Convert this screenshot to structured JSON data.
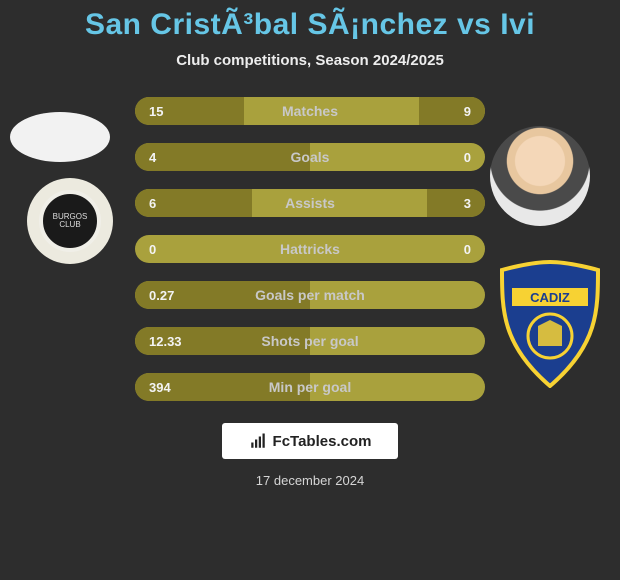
{
  "title": "San CristÃ³bal SÃ¡nchez vs Ivi",
  "subtitle": "Club competitions, Season 2024/2025",
  "date": "17 december 2024",
  "footer_brand": "FcTables.com",
  "colors": {
    "title": "#66c6e6",
    "bar_bg": "#a9a13d",
    "bar_fill": "#837a27",
    "page_bg": "#2d2d2d"
  },
  "bars": [
    {
      "label": "Matches",
      "left_val": "15",
      "right_val": "9",
      "left_pct": 62,
      "right_pct": 38
    },
    {
      "label": "Goals",
      "left_val": "4",
      "right_val": "0",
      "left_pct": 100,
      "right_pct": 0
    },
    {
      "label": "Assists",
      "left_val": "6",
      "right_val": "3",
      "left_pct": 67,
      "right_pct": 33
    },
    {
      "label": "Hattricks",
      "left_val": "0",
      "right_val": "0",
      "left_pct": 0,
      "right_pct": 0
    },
    {
      "label": "Goals per match",
      "left_val": "0.27",
      "right_val": "",
      "left_pct": 100,
      "right_pct": 0
    },
    {
      "label": "Shots per goal",
      "left_val": "12.33",
      "right_val": "",
      "left_pct": 100,
      "right_pct": 0
    },
    {
      "label": "Min per goal",
      "left_val": "394",
      "right_val": "",
      "left_pct": 100,
      "right_pct": 0
    }
  ],
  "club_left_text": "BURGOS CLUB",
  "club_right": {
    "shield_fill": "#1b3e8f",
    "shield_stroke": "#f7d233",
    "banner_text": "CADIZ"
  }
}
